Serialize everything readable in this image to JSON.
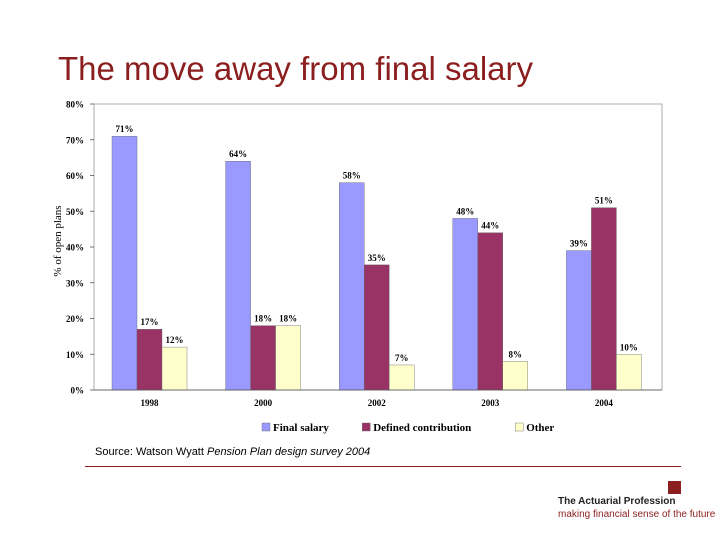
{
  "slide": {
    "title": "The move away from final salary",
    "source_prefix": "Source: Watson Wyatt ",
    "source_italic": "Pension Plan design survey 2004",
    "org_name": "The Actuarial Profession",
    "tagline": "making financial sense of the future"
  },
  "chart_data": {
    "type": "bar",
    "title": "",
    "ylabel": "% of open plans",
    "xlabel": "",
    "categories": [
      "1998",
      "2000",
      "2002",
      "2003",
      "2004"
    ],
    "yticks": [
      "0%",
      "10%",
      "20%",
      "30%",
      "40%",
      "50%",
      "60%",
      "70%",
      "80%"
    ],
    "ylim": [
      0,
      80
    ],
    "grid": false,
    "legend_position": "bottom",
    "series": [
      {
        "name": "Final salary",
        "color": "#9999ff",
        "values": [
          71,
          64,
          58,
          48,
          39
        ],
        "labels": [
          "71%",
          "64%",
          "58%",
          "48%",
          "39%"
        ]
      },
      {
        "name": "Defined contribution",
        "color": "#993366",
        "values": [
          17,
          18,
          35,
          44,
          51
        ],
        "labels": [
          "17%",
          "18%",
          "35%",
          "44%",
          "51%"
        ]
      },
      {
        "name": "Other",
        "color": "#ffffcc",
        "values": [
          12,
          18,
          7,
          8,
          10
        ],
        "labels": [
          "12%",
          "18%",
          "7%",
          "8%",
          "10%"
        ]
      }
    ]
  },
  "colors": {
    "title": "#8b1f1f",
    "brand": "#8b1f1f"
  }
}
